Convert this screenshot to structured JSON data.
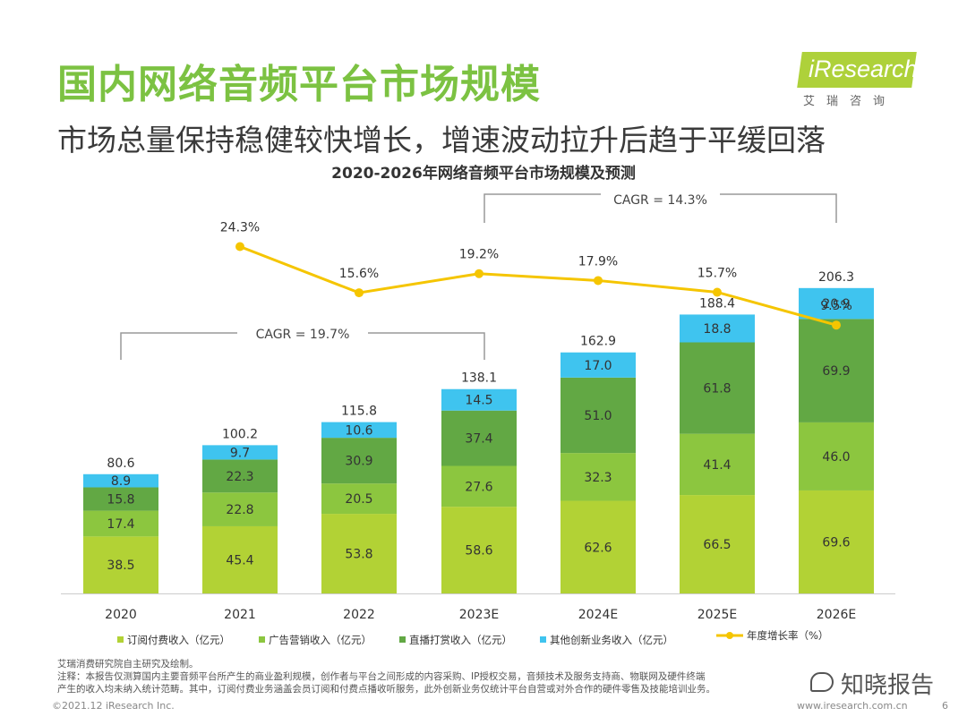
{
  "header": {
    "title": "国内网络音频平台市场规模",
    "subtitle": "市场总量保持稳健较快增长，增速波动拉升后趋于平缓回落"
  },
  "logo": {
    "brand": "iResearch",
    "chinese": "艾瑞咨询"
  },
  "colors": {
    "title_green": "#7cc242",
    "subscription": "#b2d235",
    "advertising": "#8cc63f",
    "livestream_tips": "#62a844",
    "other_new": "#3fc4ef",
    "growth_line": "#f5c500"
  },
  "chart_data": {
    "type": "bar",
    "stacked": true,
    "title": "2020-2026年网络音频平台市场规模及预测",
    "categories": [
      "2020",
      "2021",
      "2022",
      "2023E",
      "2024E",
      "2025E",
      "2026E"
    ],
    "series": [
      {
        "name": "订阅付费收入（亿元）",
        "values": [
          38.5,
          45.4,
          53.8,
          58.6,
          62.6,
          66.5,
          69.6
        ]
      },
      {
        "name": "广告营销收入（亿元）",
        "values": [
          17.4,
          22.8,
          20.5,
          27.6,
          32.3,
          41.4,
          46.0
        ]
      },
      {
        "name": "直播打赏收入（亿元）",
        "values": [
          15.8,
          22.3,
          30.9,
          37.4,
          51.0,
          61.8,
          69.9
        ]
      },
      {
        "name": "其他创新业务收入（亿元）",
        "values": [
          8.9,
          9.7,
          10.6,
          14.5,
          17.0,
          18.8,
          20.9
        ]
      }
    ],
    "totals": [
      "80.6",
      "100.2",
      "115.8",
      "138.1",
      "162.9",
      "188.4",
      "206.3"
    ],
    "segment_labels": [
      [
        "38.5",
        "45.4",
        "53.8",
        "58.6",
        "62.6",
        "66.5",
        "69.6"
      ],
      [
        "17.4",
        "22.8",
        "20.5",
        "27.6",
        "32.3",
        "41.4",
        "46.0"
      ],
      [
        "15.8",
        "22.3",
        "30.9",
        "37.4",
        "51.0",
        "61.8",
        "69.9"
      ],
      [
        "8.9",
        "9.7",
        "10.6",
        "14.5",
        "17.0",
        "18.8",
        "20.9"
      ]
    ],
    "growth_rate": {
      "name": "年度增长率（%）",
      "categories": [
        "2021",
        "2022",
        "2023E",
        "2024E",
        "2025E",
        "2026E"
      ],
      "values": [
        24.3,
        15.6,
        19.2,
        17.9,
        15.7,
        9.5
      ],
      "labels": [
        "24.3%",
        "15.6%",
        "19.2%",
        "17.9%",
        "15.7%",
        "9.5%"
      ]
    },
    "cagr": [
      {
        "label": "CAGR = 19.7%",
        "from": "2020",
        "to": "2023E"
      },
      {
        "label": "CAGR = 14.3%",
        "from": "2023E",
        "to": "2026E"
      }
    ],
    "ylim": [
      0,
      210
    ]
  },
  "notes": {
    "source": "艾瑞消费研究院自主研究及绘制。",
    "note_line1": "注释：本报告仅测算国内主要音频平台所产生的商业盈利规模，创作者与平台之间形成的内容采购、IP授权交易，音频技术及服务支持商、物联网及硬件终端",
    "note_line2": "产生的收入均未纳入统计范畴。其中，订阅付费业务涵盖会员订阅和付费点播收听服务，此外创新业务仅统计平台自营或对外合作的硬件零售及技能培训业务。"
  },
  "footer": {
    "copyright": "©2021.12 iResearch Inc.",
    "website": "www.iresearch.com.cn",
    "page": "6"
  },
  "watermark": {
    "text": "知晓报告"
  }
}
